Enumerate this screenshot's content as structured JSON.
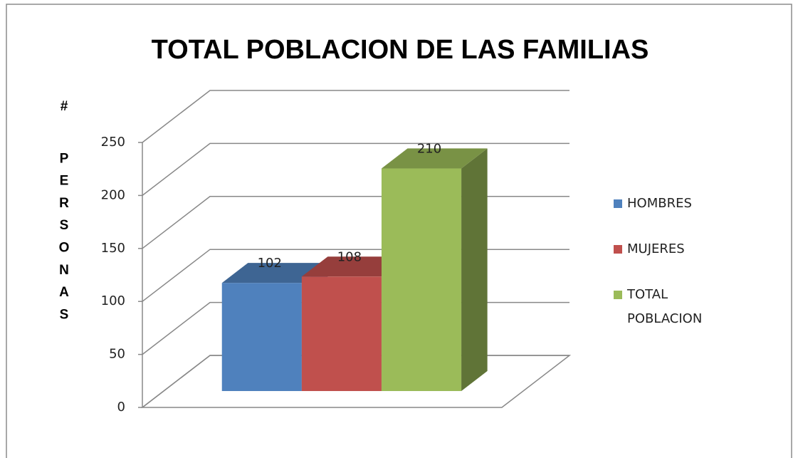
{
  "chart_data": {
    "type": "bar3d",
    "title": "TOTAL POBLACION DE LAS FAMILIAS",
    "ylabel": "# PERSONAS",
    "series": [
      {
        "name": "HOMBRES",
        "color": "#4f81bd",
        "values": [
          102
        ]
      },
      {
        "name": "MUJERES",
        "color": "#c0504d",
        "values": [
          108
        ]
      },
      {
        "name": "TOTAL POBLACION",
        "color": "#9bbb59",
        "values": [
          210
        ]
      }
    ],
    "ylim": [
      0,
      250
    ],
    "yticks": [
      0,
      50,
      100,
      150,
      200,
      250
    ],
    "grid": true,
    "legend": "right"
  }
}
